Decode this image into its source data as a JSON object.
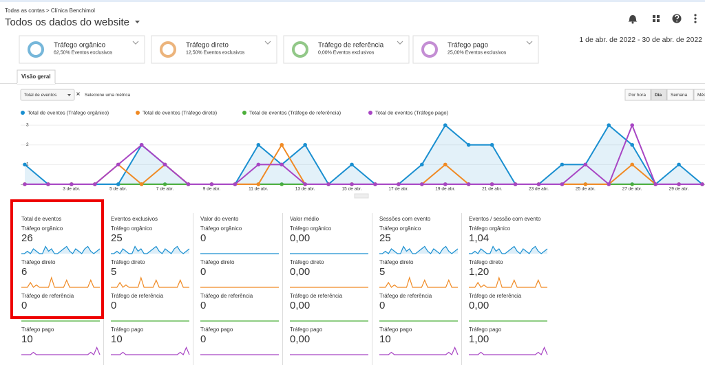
{
  "header": {
    "breadcrumb": "Todas as contas > Clínica Benchimol",
    "title": "Todos os dados do website"
  },
  "segments": [
    {
      "name": "Tráfego orgânico",
      "share": "62,50% Eventos exclusivos",
      "color": "#1a8fd0"
    },
    {
      "name": "Tráfego direto",
      "share": "12,50% Eventos exclusivos",
      "color": "#f08a24"
    },
    {
      "name": "Tráfego de referência",
      "share": "0,00% Eventos exclusivos",
      "color": "#4caf3a"
    },
    {
      "name": "Tráfego pago",
      "share": "25,00% Eventos exclusivos",
      "color": "#a846c4"
    }
  ],
  "date_range": "1 de abr. de 2022 - 30 de abr. de 2022",
  "tab": "Visão geral",
  "controls": {
    "metric": "Total de eventos",
    "add_metric": "Selecione uma métrica",
    "granularity": [
      "Por hora",
      "Dia",
      "Semana",
      "Mês"
    ]
  },
  "chart_data": {
    "type": "line",
    "categories": [
      null,
      null,
      "3 de abr.",
      null,
      "5 de abr.",
      null,
      "7 de abr.",
      null,
      "9 de abr.",
      null,
      "11 de abr.",
      null,
      "13 de abr.",
      null,
      "15 de abr.",
      null,
      "17 de abr.",
      null,
      "19 de abr.",
      null,
      "21 de abr.",
      null,
      "23 de abr.",
      null,
      "25 de abr.",
      null,
      "27 de abr.",
      null,
      "29 de abr.",
      null
    ],
    "series": [
      {
        "name": "Total de eventos (Tráfego orgânico)",
        "color": "#1a8fd0",
        "values": [
          1,
          0,
          0,
          0,
          0,
          2,
          1,
          0,
          0,
          0,
          2,
          1,
          2,
          0,
          1,
          0,
          0,
          1,
          3,
          2,
          2,
          0,
          0,
          1,
          1,
          3,
          2,
          0,
          1,
          0
        ]
      },
      {
        "name": "Total de eventos (Tráfego direto)",
        "color": "#f08a24",
        "values": [
          0,
          0,
          0,
          0,
          1,
          0,
          1,
          0,
          0,
          0,
          0,
          2,
          0,
          0,
          0,
          0,
          0,
          0,
          1,
          0,
          0,
          0,
          0,
          0,
          0,
          0,
          1,
          0,
          0,
          0
        ]
      },
      {
        "name": "Total de eventos (Tráfego de referência)",
        "color": "#4caf3a",
        "values": [
          0,
          0,
          0,
          0,
          0,
          0,
          0,
          0,
          0,
          0,
          0,
          0,
          0,
          0,
          0,
          0,
          0,
          0,
          0,
          0,
          0,
          0,
          0,
          0,
          0,
          0,
          0,
          0,
          0,
          0
        ]
      },
      {
        "name": "Total de eventos (Tráfego pago)",
        "color": "#a846c4",
        "values": [
          0,
          0,
          0,
          0,
          1,
          2,
          1,
          0,
          0,
          0,
          1,
          1,
          0,
          0,
          0,
          0,
          0,
          0,
          0,
          0,
          0,
          0,
          0,
          0,
          1,
          0,
          3,
          0,
          0,
          0
        ]
      }
    ],
    "ylim": [
      0,
      3.25
    ],
    "yticks": [
      1,
      2,
      3
    ],
    "grid": true
  },
  "metrics": [
    {
      "title": "Total de eventos",
      "rows": [
        {
          "segment": "Tráfego orgânico",
          "value": "26"
        },
        {
          "segment": "Tráfego direto",
          "value": "6"
        },
        {
          "segment": "Tráfego de referência",
          "value": "0"
        },
        {
          "segment": "Tráfego pago",
          "value": "10"
        }
      ]
    },
    {
      "title": "Eventos exclusivos",
      "rows": [
        {
          "segment": "Tráfego orgânico",
          "value": "25"
        },
        {
          "segment": "Tráfego direto",
          "value": "5"
        },
        {
          "segment": "Tráfego de referência",
          "value": "0"
        },
        {
          "segment": "Tráfego pago",
          "value": "10"
        }
      ]
    },
    {
      "title": "Valor do evento",
      "rows": [
        {
          "segment": "Tráfego orgânico",
          "value": "0"
        },
        {
          "segment": "Tráfego direto",
          "value": "0"
        },
        {
          "segment": "Tráfego de referência",
          "value": "0"
        },
        {
          "segment": "Tráfego pago",
          "value": "0"
        }
      ]
    },
    {
      "title": "Valor médio",
      "rows": [
        {
          "segment": "Tráfego orgânico",
          "value": "0,00"
        },
        {
          "segment": "Tráfego direto",
          "value": "0,00"
        },
        {
          "segment": "Tráfego de referência",
          "value": "0,00"
        },
        {
          "segment": "Tráfego pago",
          "value": "0,00"
        }
      ]
    },
    {
      "title": "Sessões com evento",
      "rows": [
        {
          "segment": "Tráfego orgânico",
          "value": "25"
        },
        {
          "segment": "Tráfego direto",
          "value": "5"
        },
        {
          "segment": "Tráfego de referência",
          "value": "0"
        },
        {
          "segment": "Tráfego pago",
          "value": "10"
        }
      ]
    },
    {
      "title": "Eventos / sessão com evento",
      "rows": [
        {
          "segment": "Tráfego orgânico",
          "value": "1,04"
        },
        {
          "segment": "Tráfego direto",
          "value": "1,20"
        },
        {
          "segment": "Tráfego de referência",
          "value": "0,00"
        },
        {
          "segment": "Tráfego pago",
          "value": "1,00"
        }
      ]
    }
  ]
}
